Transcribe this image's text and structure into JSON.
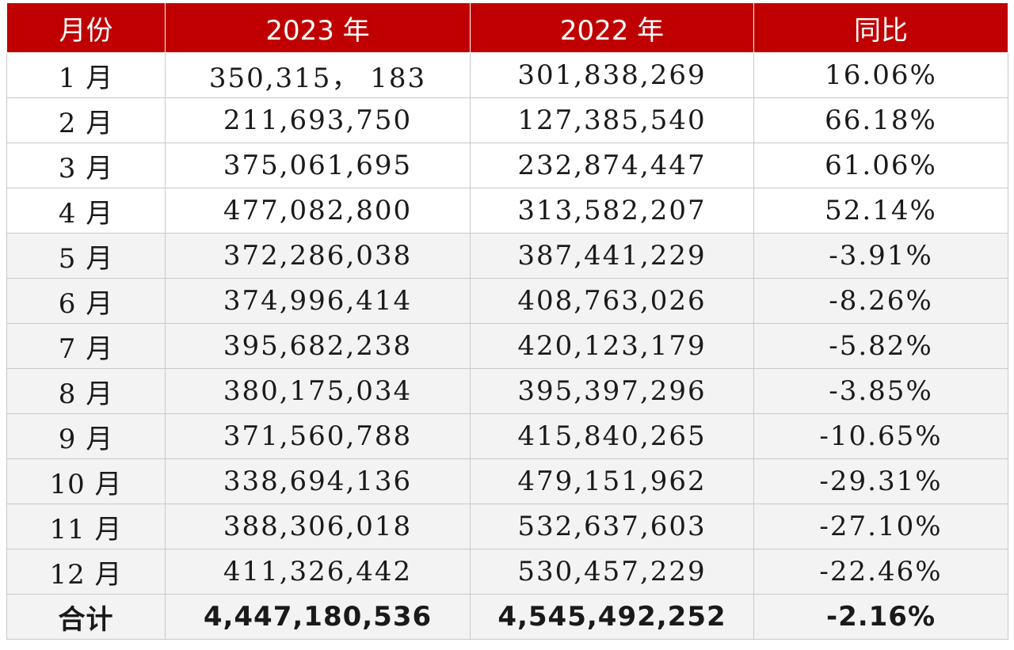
{
  "header": {
    "col_month": "月份",
    "col_2023": "2023 年",
    "col_2022": "2022 年",
    "col_yoy": "同比"
  },
  "rows": [
    {
      "month": "1 月",
      "y2023": "350,315， 183",
      "y2022": "301,838,269",
      "yoy": "16.06%"
    },
    {
      "month": "2 月",
      "y2023": "211,693,750",
      "y2022": "127,385,540",
      "yoy": "66.18%"
    },
    {
      "month": "3 月",
      "y2023": "375,061,695",
      "y2022": "232,874,447",
      "yoy": "61.06%"
    },
    {
      "month": "4 月",
      "y2023": "477,082,800",
      "y2022": "313,582,207",
      "yoy": "52.14%"
    },
    {
      "month": "5 月",
      "y2023": "372,286,038",
      "y2022": "387,441,229",
      "yoy": "-3.91%"
    },
    {
      "month": "6 月",
      "y2023": "374,996,414",
      "y2022": "408,763,026",
      "yoy": "-8.26%"
    },
    {
      "month": "7 月",
      "y2023": "395,682,238",
      "y2022": "420,123,179",
      "yoy": "-5.82%"
    },
    {
      "month": "8 月",
      "y2023": "380,175,034",
      "y2022": "395,397,296",
      "yoy": "-3.85%"
    },
    {
      "month": "9 月",
      "y2023": "371,560,788",
      "y2022": "415,840,265",
      "yoy": "-10.65%"
    },
    {
      "month": "10 月",
      "y2023": "338,694,136",
      "y2022": "479,151,962",
      "yoy": "-29.31%"
    },
    {
      "month": "11 月",
      "y2023": "388,306,018",
      "y2022": "532,637,603",
      "yoy": "-27.10%"
    },
    {
      "month": "12 月",
      "y2023": "411,326,442",
      "y2022": "530,457,229",
      "yoy": "-22.46%"
    }
  ],
  "total": {
    "label": "合计",
    "y2023": "4,447,180,536",
    "y2022": "4,545,492,252",
    "yoy": "-2.16%"
  },
  "colors": {
    "header_bg": "#c00000",
    "header_text": "#ffffff",
    "border": "#c9c9c9",
    "shade": "#f3f3f3"
  }
}
